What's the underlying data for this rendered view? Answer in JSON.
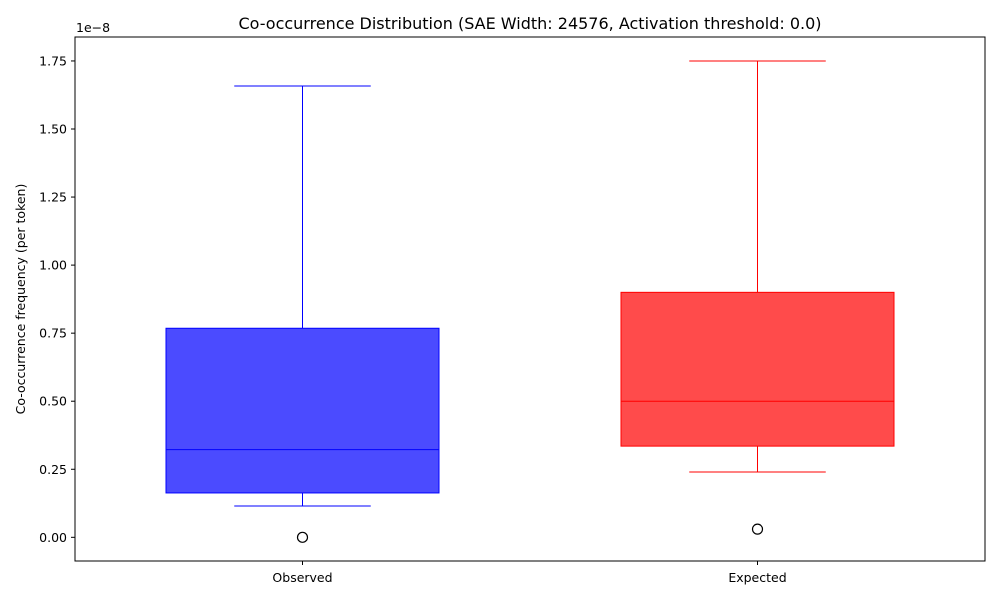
{
  "chart_data": {
    "type": "box",
    "title": "Co-occurrence Distribution (SAE Width: 24576, Activation threshold: 0.0)",
    "xlabel": "",
    "ylabel": "Co-occurrence frequency (per token)",
    "y_offset_label": "1e−8",
    "y_scale_factor": 1e-08,
    "ylim": [
      -0.087,
      1.838
    ],
    "yticks": [
      0.0,
      0.25,
      0.5,
      0.75,
      1.0,
      1.25,
      1.5,
      1.75
    ],
    "ytick_labels": [
      "0.00",
      "0.25",
      "0.50",
      "0.75",
      "1.00",
      "1.25",
      "1.50",
      "1.75"
    ],
    "grid": false,
    "categories": [
      "Observed",
      "Expected"
    ],
    "boxes": [
      {
        "category": "Observed",
        "color": "#0000ff",
        "fill": "#4b4bff",
        "whisker_low": 0.115,
        "q1": 0.163,
        "median": 0.322,
        "q3": 0.768,
        "whisker_high": 1.658,
        "outliers": [
          0.0
        ]
      },
      {
        "category": "Expected",
        "color": "#ff0000",
        "fill": "#ff4b4b",
        "whisker_low": 0.24,
        "q1": 0.335,
        "median": 0.5,
        "q3": 0.9,
        "whisker_high": 1.75,
        "outliers": [
          0.03
        ]
      }
    ]
  }
}
